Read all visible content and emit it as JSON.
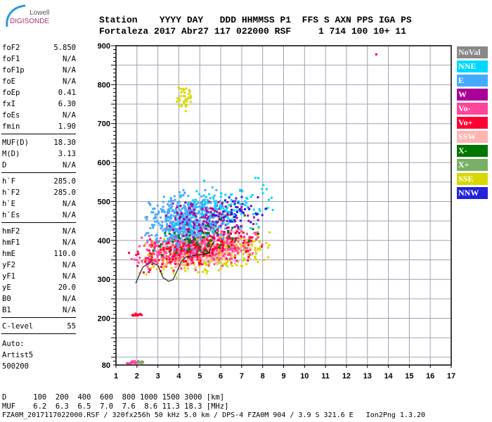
{
  "logo": {
    "line1": "Lowell",
    "line2": "DIGISONDE"
  },
  "header": {
    "labels": "Station    YYYY DAY   DDD HHMMSS P1  FFS S AXN PPS IGA PS",
    "values": "Fortaleza 2017 Abr27 117 022000 RSF     1 714 100 10+ 11"
  },
  "params": [
    {
      "k": "foF2",
      "v": "5.850"
    },
    {
      "k": "foF1",
      "v": "N/A"
    },
    {
      "k": "foF1p",
      "v": "N/A"
    },
    {
      "k": "foE",
      "v": "N/A"
    },
    {
      "k": "foEp",
      "v": "0.41"
    },
    {
      "k": "fxI",
      "v": "6.30"
    },
    {
      "k": "foEs",
      "v": "N/A"
    },
    {
      "k": "fmin",
      "v": "1.90"
    },
    {
      "k": "MUF(D)",
      "v": "18.30"
    },
    {
      "k": "M(D)",
      "v": "3.13"
    },
    {
      "k": "D",
      "v": "N/A"
    },
    {
      "k": "h`F",
      "v": "285.0"
    },
    {
      "k": "h`F2",
      "v": "285.0"
    },
    {
      "k": "h`E",
      "v": "N/A"
    },
    {
      "k": "h`Es",
      "v": "N/A"
    },
    {
      "k": "hmF2",
      "v": "N/A"
    },
    {
      "k": "hmF1",
      "v": "N/A"
    },
    {
      "k": "hmE",
      "v": "110.0"
    },
    {
      "k": "yF2",
      "v": "N/A"
    },
    {
      "k": "yF1",
      "v": "N/A"
    },
    {
      "k": "yE",
      "v": "20.0"
    },
    {
      "k": "B0",
      "v": "N/A"
    },
    {
      "k": "B1",
      "v": "N/A"
    },
    {
      "k": "C-level",
      "v": "55"
    }
  ],
  "auto": {
    "l1": "Auto:",
    "l2": "Artist5",
    "l3": "500200"
  },
  "footer": {
    "d_row": "D      100  200  400  600  800 1000 1500 3000 [km]",
    "muf_row": "MUF    6.2  6.3  6.5  7.0  7.6  8.6 11.3 18.3 [MHz]",
    "file_row": "FZA0M_2017117022000.RSF / 320fx256h 50 kHz 5.0 km / DPS-4 FZA0M 904 / 3.9 S 321.6 E   Ion2Png 1.3.20"
  },
  "chart_data": {
    "type": "scatter",
    "title": "",
    "xlabel": "Frequency [MHz]",
    "ylabel": "Virtual height [km]",
    "xlim": [
      1,
      17
    ],
    "ylim": [
      80,
      900
    ],
    "xticks": [
      1,
      2,
      3,
      4,
      5,
      6,
      7,
      8,
      9,
      10,
      11,
      12,
      13,
      14,
      15,
      16,
      17
    ],
    "yticks": [
      80,
      200,
      300,
      400,
      500,
      600,
      700,
      800,
      900
    ],
    "grid": true,
    "legend_position": "right",
    "legend": [
      {
        "name": "NoVal",
        "color": "#888888"
      },
      {
        "name": "NNE",
        "color": "#00d8ff"
      },
      {
        "name": "E",
        "color": "#44aaff"
      },
      {
        "name": "W",
        "color": "#aa0099"
      },
      {
        "name": "Vo-",
        "color": "#ff4499"
      },
      {
        "name": "Vo+",
        "color": "#ff0033"
      },
      {
        "name": "SSW",
        "color": "#ffb4b0"
      },
      {
        "name": "X-",
        "color": "#007700"
      },
      {
        "name": "X+",
        "color": "#77b066"
      },
      {
        "name": "SSE",
        "color": "#d8d800"
      },
      {
        "name": "NNW",
        "color": "#2222dd"
      }
    ],
    "echo_clusters": [
      {
        "series": "SSE",
        "f": [
          2,
          8.5
        ],
        "h": [
          285,
          420
        ],
        "n": 380
      },
      {
        "series": "SSW",
        "f": [
          2,
          8
        ],
        "h": [
          300,
          420
        ],
        "n": 320
      },
      {
        "series": "Vo-",
        "f": [
          1.5,
          8
        ],
        "h": [
          300,
          430
        ],
        "n": 420
      },
      {
        "series": "Vo+",
        "f": [
          1.5,
          8
        ],
        "h": [
          300,
          420
        ],
        "n": 200
      },
      {
        "series": "E",
        "f": [
          2.2,
          6.5
        ],
        "h": [
          350,
          530
        ],
        "n": 550
      },
      {
        "series": "W",
        "f": [
          3,
          8
        ],
        "h": [
          370,
          520
        ],
        "n": 160
      },
      {
        "series": "NNE",
        "f": [
          3.5,
          8.8
        ],
        "h": [
          380,
          560
        ],
        "n": 120
      },
      {
        "series": "X-",
        "f": [
          2,
          8
        ],
        "h": [
          320,
          450
        ],
        "n": 60
      },
      {
        "series": "NNW",
        "f": [
          5,
          8.5
        ],
        "h": [
          420,
          520
        ],
        "n": 40
      },
      {
        "series": "SSE",
        "f": [
          3.8,
          4.6
        ],
        "h": [
          720,
          820
        ],
        "n": 40
      },
      {
        "series": "Vo-",
        "f": [
          1.4,
          2.3
        ],
        "h": [
          82,
          92
        ],
        "n": 25
      },
      {
        "series": "X+",
        "f": [
          1.8,
          2.3
        ],
        "h": [
          82,
          92
        ],
        "n": 10
      },
      {
        "series": "Vo+",
        "f": [
          1.6,
          2.3
        ],
        "h": [
          205,
          215
        ],
        "n": 12
      },
      {
        "series": "Vo+",
        "f": [
          13.3,
          13.5
        ],
        "h": [
          878,
          882
        ],
        "n": 1
      }
    ],
    "trace": {
      "f": [
        1.94,
        2.28,
        2.68,
        3.01,
        3.25,
        3.52,
        3.72,
        3.92,
        4.12,
        4.36,
        4.86,
        5.43,
        5.56,
        5.7
      ],
      "h": [
        290,
        331,
        346,
        335,
        304,
        295,
        299,
        322,
        346,
        358,
        362,
        367,
        387,
        398
      ]
    }
  }
}
